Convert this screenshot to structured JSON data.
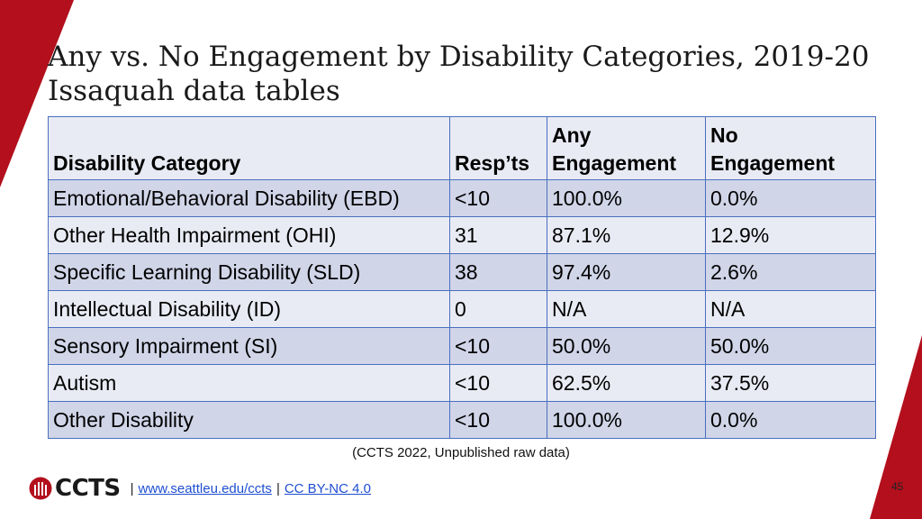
{
  "slide": {
    "title_line1": "Any vs. No Engagement by Disability Categories, 2019-20",
    "title_line2": "Issaquah data tables",
    "source_note": "(CCTS 2022, Unpublished raw data)",
    "page_number": "45",
    "accent_color": "#b30f1c"
  },
  "table": {
    "headers": {
      "category": "Disability Category",
      "respondents": "Resp’ts",
      "any_line1": "Any",
      "any_line2": "Engagement",
      "no_line1": "No",
      "no_line2": "Engagement"
    },
    "rows": [
      {
        "category": "Emotional/Behavioral Disability (EBD)",
        "respondents": "<10",
        "any": "100.0%",
        "no": "0.0%"
      },
      {
        "category": "Other Health Impairment (OHI)",
        "respondents": "31",
        "any": "87.1%",
        "no": "12.9%"
      },
      {
        "category": "Specific Learning Disability (SLD)",
        "respondents": "38",
        "any": "97.4%",
        "no": "2.6%"
      },
      {
        "category": "Intellectual Disability (ID)",
        "respondents": "0",
        "any": "N/A",
        "no": "N/A"
      },
      {
        "category": "Sensory Impairment (SI)",
        "respondents": "<10",
        "any": "50.0%",
        "no": "50.0%"
      },
      {
        "category": "Autism",
        "respondents": "<10",
        "any": "62.5%",
        "no": "37.5%"
      },
      {
        "category": "Other Disability",
        "respondents": "<10",
        "any": "100.0%",
        "no": "0.0%"
      }
    ]
  },
  "footer": {
    "logo_text": "CCTS",
    "sep1": "|",
    "link_url_text": "www.seattleu.edu/ccts",
    "sep2": "|",
    "license_text": "CC BY-NC 4.0"
  }
}
